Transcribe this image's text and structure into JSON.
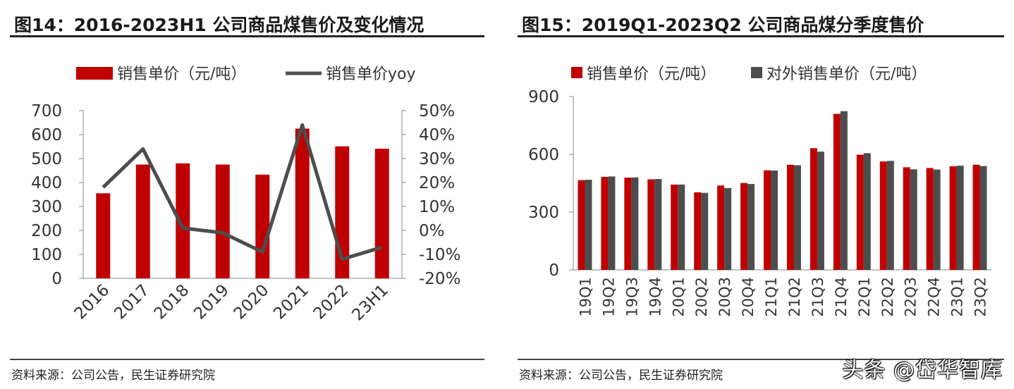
{
  "chart_data": [
    {
      "type": "bar+line",
      "title": "图14：2016-2023H1 公司商品煤售价及变化情况",
      "categories": [
        "2016",
        "2017",
        "2018",
        "2019",
        "2020",
        "2021",
        "2022",
        "23H1"
      ],
      "series": [
        {
          "name": "销售单价（元/吨）",
          "type": "bar",
          "axis": "left",
          "color": "#c00000",
          "values": [
            355,
            475,
            480,
            475,
            433,
            625,
            551,
            541
          ]
        },
        {
          "name": "销售单价yoy",
          "type": "line",
          "axis": "right",
          "color": "#4d4d4d",
          "values": [
            18,
            34,
            1,
            -1,
            -9,
            44,
            -12,
            -7
          ]
        }
      ],
      "y_left": {
        "min": 0,
        "max": 700,
        "step": 100,
        "ticks": [
          "0",
          "100",
          "200",
          "300",
          "400",
          "500",
          "600",
          "700"
        ]
      },
      "y_right": {
        "min": -20,
        "max": 50,
        "step": 10,
        "ticks": [
          "-20%",
          "-10%",
          "0%",
          "10%",
          "20%",
          "30%",
          "40%",
          "50%"
        ]
      },
      "legend_position": "top",
      "source": "资料来源：公司公告，民生证券研究院"
    },
    {
      "type": "bar",
      "title": "图15：2019Q1-2023Q2 公司商品煤分季度售价",
      "categories": [
        "19Q1",
        "19Q2",
        "19Q3",
        "19Q4",
        "20Q1",
        "20Q2",
        "20Q3",
        "20Q4",
        "21Q1",
        "21Q2",
        "21Q3",
        "21Q4",
        "22Q1",
        "22Q2",
        "22Q3",
        "22Q4",
        "23Q1",
        "23Q2"
      ],
      "series": [
        {
          "name": "销售单价（元/吨）",
          "color": "#c00000",
          "values": [
            466,
            483,
            479,
            470,
            443,
            403,
            438,
            451,
            517,
            546,
            632,
            810,
            598,
            563,
            533,
            529,
            538,
            546
          ]
        },
        {
          "name": "对外销售单价（元/吨）",
          "color": "#4d4d4d",
          "values": [
            468,
            485,
            480,
            472,
            443,
            400,
            425,
            446,
            516,
            543,
            614,
            824,
            606,
            566,
            522,
            521,
            541,
            539
          ]
        }
      ],
      "y_axis": {
        "min": 0,
        "max": 900,
        "step": 300,
        "ticks": [
          "0",
          "300",
          "600",
          "900"
        ]
      },
      "legend_position": "top",
      "source": "资料来源：公司公告，民生证券研究院"
    }
  ],
  "watermark": "头条 @岱华智库"
}
